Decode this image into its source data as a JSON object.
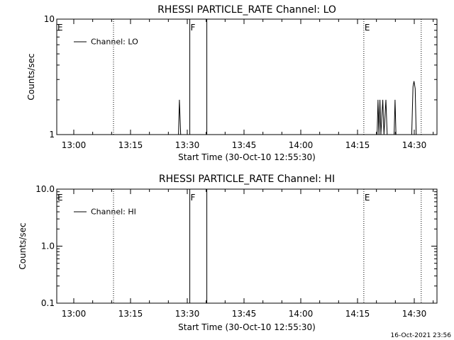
{
  "footer_timestamp": "16-Oct-2021 23:56",
  "chart_data": [
    {
      "type": "line",
      "title": "RHESSI PARTICLE_RATE Channel: LO",
      "xlabel": "Start Time (30-Oct-10 12:55:30)",
      "ylabel": "Counts/sec",
      "yscale": "log",
      "ylim": [
        1,
        10
      ],
      "xlim": [
        "12:55:30",
        "14:36:00"
      ],
      "x_ticks": [
        "13:00",
        "13:15",
        "13:30",
        "13:45",
        "14:00",
        "14:15",
        "14:30"
      ],
      "y_ticks": [
        "1",
        "10"
      ],
      "legend": {
        "position": "top-left",
        "entries": [
          "Channel: LO"
        ]
      },
      "series": [
        {
          "name": "Channel: LO",
          "points": [
            [
              "13:27:40",
              1
            ],
            [
              "13:27:55",
              2.0
            ],
            [
              "13:28:15",
              1
            ],
            [
              "14:20:10",
              1
            ],
            [
              "14:20:25",
              2.0
            ],
            [
              "14:20:40",
              1
            ],
            [
              "14:20:55",
              2.0
            ],
            [
              "14:21:10",
              1
            ],
            [
              "14:21:40",
              2.0
            ],
            [
              "14:22:00",
              1
            ],
            [
              "14:22:30",
              2.0
            ],
            [
              "14:22:50",
              1
            ],
            [
              "14:24:40",
              1
            ],
            [
              "14:24:55",
              2.0
            ],
            [
              "14:25:10",
              1
            ],
            [
              "14:29:20",
              1
            ],
            [
              "14:29:40",
              2.6
            ],
            [
              "14:29:55",
              2.9
            ],
            [
              "14:30:15",
              2.5
            ],
            [
              "14:30:30",
              1
            ]
          ]
        }
      ],
      "markers": [
        {
          "time": "12:55:30",
          "label": "E",
          "style": "dotted"
        },
        {
          "time": "13:10:30",
          "label": "",
          "style": "dotted"
        },
        {
          "time": "13:30:40",
          "label": "F",
          "style": "solid"
        },
        {
          "time": "13:35:10",
          "label": "",
          "style": "solid"
        },
        {
          "time": "14:16:40",
          "label": "E",
          "style": "dotted"
        },
        {
          "time": "14:31:50",
          "label": "",
          "style": "dotted"
        }
      ]
    },
    {
      "type": "line",
      "title": "RHESSI PARTICLE_RATE Channel: HI",
      "xlabel": "Start Time (30-Oct-10 12:55:30)",
      "ylabel": "Counts/sec",
      "yscale": "log",
      "ylim": [
        0.1,
        10
      ],
      "xlim": [
        "12:55:30",
        "14:36:00"
      ],
      "x_ticks": [
        "13:00",
        "13:15",
        "13:30",
        "13:45",
        "14:00",
        "14:15",
        "14:30"
      ],
      "y_ticks": [
        "0.1",
        "1.0",
        "10.0"
      ],
      "legend": {
        "position": "top-left",
        "entries": [
          "Channel: HI"
        ]
      },
      "series": [
        {
          "name": "Channel: HI",
          "points": []
        }
      ],
      "markers": [
        {
          "time": "12:55:30",
          "label": "E",
          "style": "dotted"
        },
        {
          "time": "13:10:30",
          "label": "",
          "style": "dotted"
        },
        {
          "time": "13:30:40",
          "label": "F",
          "style": "solid"
        },
        {
          "time": "13:35:10",
          "label": "",
          "style": "solid"
        },
        {
          "time": "14:16:40",
          "label": "E",
          "style": "dotted"
        },
        {
          "time": "14:31:50",
          "label": "",
          "style": "dotted"
        }
      ]
    }
  ]
}
